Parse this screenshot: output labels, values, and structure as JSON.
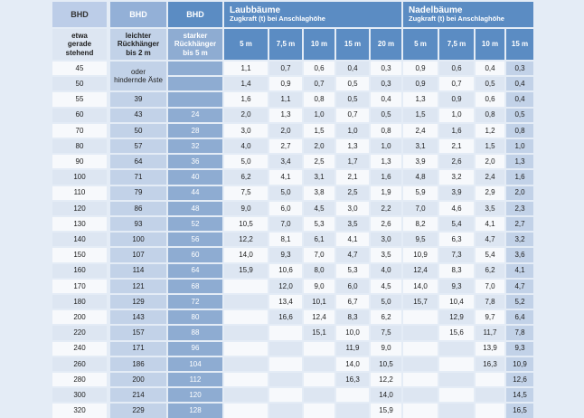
{
  "header": {
    "bhd_col1": "BHD",
    "bhd_col2": "BHD",
    "bhd_col3": "BHD",
    "laub_title": "Laubbäume",
    "laub_subtitle": "Zugkraft (t) bei Anschlaghöhe",
    "nadel_title": "Nadelbäume",
    "nadel_subtitle": "Zugkraft (t) bei Anschlaghöhe",
    "col1_lines": [
      "etwa",
      "gerade",
      "stehend"
    ],
    "col2_lines": [
      "leichter",
      "Rückhänger",
      "bis 2 m"
    ],
    "col3_lines": [
      "starker",
      "Rückhänger",
      "bis 5 m"
    ],
    "laub_heights": [
      "5 m",
      "7,5 m",
      "10 m",
      "15 m",
      "20 m"
    ],
    "nadel_heights": [
      "5 m",
      "7,5 m",
      "10 m",
      "15 m"
    ],
    "note_lines": [
      "oder",
      "hindernde Äste"
    ]
  },
  "rows": [
    {
      "bhd": "45",
      "l2": "",
      "l5": "",
      "laub": [
        "1,1",
        "0,7",
        "0,6",
        "0,4",
        "0,3"
      ],
      "nadel": [
        "0,9",
        "0,6",
        "0,4",
        "0,3"
      ]
    },
    {
      "bhd": "50",
      "l2": "",
      "l5": "",
      "laub": [
        "1,4",
        "0,9",
        "0,7",
        "0,5",
        "0,3"
      ],
      "nadel": [
        "0,9",
        "0,7",
        "0,5",
        "0,4"
      ]
    },
    {
      "bhd": "55",
      "l2": "39",
      "l5": "",
      "laub": [
        "1,6",
        "1,1",
        "0,8",
        "0,5",
        "0,4"
      ],
      "nadel": [
        "1,3",
        "0,9",
        "0,6",
        "0,4"
      ]
    },
    {
      "bhd": "60",
      "l2": "43",
      "l5": "24",
      "laub": [
        "2,0",
        "1,3",
        "1,0",
        "0,7",
        "0,5"
      ],
      "nadel": [
        "1,5",
        "1,0",
        "0,8",
        "0,5"
      ]
    },
    {
      "bhd": "70",
      "l2": "50",
      "l5": "28",
      "laub": [
        "3,0",
        "2,0",
        "1,5",
        "1,0",
        "0,8"
      ],
      "nadel": [
        "2,4",
        "1,6",
        "1,2",
        "0,8"
      ]
    },
    {
      "bhd": "80",
      "l2": "57",
      "l5": "32",
      "laub": [
        "4,0",
        "2,7",
        "2,0",
        "1,3",
        "1,0"
      ],
      "nadel": [
        "3,1",
        "2,1",
        "1,5",
        "1,0"
      ]
    },
    {
      "bhd": "90",
      "l2": "64",
      "l5": "36",
      "laub": [
        "5,0",
        "3,4",
        "2,5",
        "1,7",
        "1,3"
      ],
      "nadel": [
        "3,9",
        "2,6",
        "2,0",
        "1,3"
      ]
    },
    {
      "bhd": "100",
      "l2": "71",
      "l5": "40",
      "laub": [
        "6,2",
        "4,1",
        "3,1",
        "2,1",
        "1,6"
      ],
      "nadel": [
        "4,8",
        "3,2",
        "2,4",
        "1,6"
      ]
    },
    {
      "bhd": "110",
      "l2": "79",
      "l5": "44",
      "laub": [
        "7,5",
        "5,0",
        "3,8",
        "2,5",
        "1,9"
      ],
      "nadel": [
        "5,9",
        "3,9",
        "2,9",
        "2,0"
      ]
    },
    {
      "bhd": "120",
      "l2": "86",
      "l5": "48",
      "laub": [
        "9,0",
        "6,0",
        "4,5",
        "3,0",
        "2,2"
      ],
      "nadel": [
        "7,0",
        "4,6",
        "3,5",
        "2,3"
      ]
    },
    {
      "bhd": "130",
      "l2": "93",
      "l5": "52",
      "laub": [
        "10,5",
        "7,0",
        "5,3",
        "3,5",
        "2,6"
      ],
      "nadel": [
        "8,2",
        "5,4",
        "4,1",
        "2,7"
      ]
    },
    {
      "bhd": "140",
      "l2": "100",
      "l5": "56",
      "laub": [
        "12,2",
        "8,1",
        "6,1",
        "4,1",
        "3,0"
      ],
      "nadel": [
        "9,5",
        "6,3",
        "4,7",
        "3,2"
      ]
    },
    {
      "bhd": "150",
      "l2": "107",
      "l5": "60",
      "laub": [
        "14,0",
        "9,3",
        "7,0",
        "4,7",
        "3,5"
      ],
      "nadel": [
        "10,9",
        "7,3",
        "5,4",
        "3,6"
      ]
    },
    {
      "bhd": "160",
      "l2": "114",
      "l5": "64",
      "laub": [
        "15,9",
        "10,6",
        "8,0",
        "5,3",
        "4,0"
      ],
      "nadel": [
        "12,4",
        "8,3",
        "6,2",
        "4,1"
      ]
    },
    {
      "bhd": "170",
      "l2": "121",
      "l5": "68",
      "laub": [
        "",
        "12,0",
        "9,0",
        "6,0",
        "4,5"
      ],
      "nadel": [
        "14,0",
        "9,3",
        "7,0",
        "4,7"
      ]
    },
    {
      "bhd": "180",
      "l2": "129",
      "l5": "72",
      "laub": [
        "",
        "13,4",
        "10,1",
        "6,7",
        "5,0"
      ],
      "nadel": [
        "15,7",
        "10,4",
        "7,8",
        "5,2"
      ]
    },
    {
      "bhd": "200",
      "l2": "143",
      "l5": "80",
      "laub": [
        "",
        "16,6",
        "12,4",
        "8,3",
        "6,2"
      ],
      "nadel": [
        "",
        "12,9",
        "9,7",
        "6,4"
      ]
    },
    {
      "bhd": "220",
      "l2": "157",
      "l5": "88",
      "laub": [
        "",
        "",
        "15,1",
        "10,0",
        "7,5"
      ],
      "nadel": [
        "",
        "15,6",
        "11,7",
        "7,8"
      ]
    },
    {
      "bhd": "240",
      "l2": "171",
      "l5": "96",
      "laub": [
        "",
        "",
        "",
        "11,9",
        "9,0"
      ],
      "nadel": [
        "",
        "",
        "13,9",
        "9,3"
      ]
    },
    {
      "bhd": "260",
      "l2": "186",
      "l5": "104",
      "laub": [
        "",
        "",
        "",
        "14,0",
        "10,5"
      ],
      "nadel": [
        "",
        "",
        "16,3",
        "10,9"
      ]
    },
    {
      "bhd": "280",
      "l2": "200",
      "l5": "112",
      "laub": [
        "",
        "",
        "",
        "16,3",
        "12,2"
      ],
      "nadel": [
        "",
        "",
        "",
        "12,6"
      ]
    },
    {
      "bhd": "300",
      "l2": "214",
      "l5": "120",
      "laub": [
        "",
        "",
        "",
        "",
        "14,0"
      ],
      "nadel": [
        "",
        "",
        "",
        "14,5"
      ]
    },
    {
      "bhd": "320",
      "l2": "229",
      "l5": "128",
      "laub": [
        "",
        "",
        "",
        "",
        "15,9"
      ],
      "nadel": [
        "",
        "",
        "",
        "16,5"
      ]
    }
  ],
  "colors": {
    "page_bg": "#e4ecf6",
    "header_dark": "#5b8cc3",
    "header_mid": "#93b0d7",
    "header_light": "#bccde8",
    "cell_light": "#dde6f2",
    "cell_white": "#f7f9fc",
    "cell_mid": "#c2d2e8",
    "cell_dark": "#8eacd2",
    "border": "#ffffff",
    "text": "#1e1e1e"
  }
}
